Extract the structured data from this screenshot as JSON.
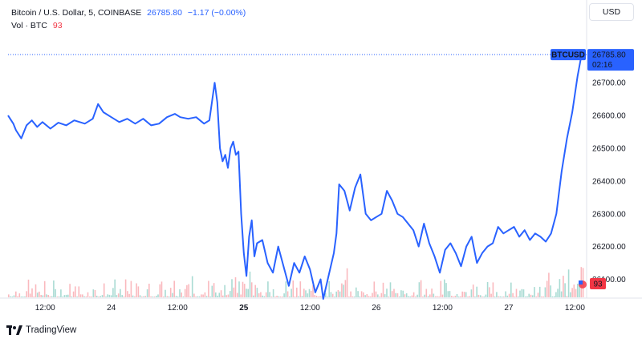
{
  "header": {
    "symbol_desc": "Bitcoin / U.S. Dollar, 5, COINBASE",
    "last_price": "26785.80",
    "change": "−1.17 (−0.00%)",
    "volume_label": "Vol · BTC",
    "volume_value": "93"
  },
  "currency_button": "USD",
  "price_badge": {
    "ticker": "BTCUSD",
    "price": "26785.80",
    "countdown": "02:16"
  },
  "volume_badge": "93",
  "brand": "TradingView",
  "colors": {
    "line": "#2962ff",
    "up_volume": "#089981",
    "down_volume": "#f23645",
    "badge_bg": "#2962ff",
    "volume_badge_bg": "#f23645"
  },
  "chart_data": {
    "type": "line",
    "title": "Bitcoin / U.S. Dollar, 5, COINBASE",
    "xlabel": "",
    "ylabel": "",
    "x_ticks": [
      {
        "label": "12:00",
        "pos": 0.0
      },
      {
        "label": "24",
        "pos": 0.5
      },
      {
        "label": "12:00",
        "pos": 1.0
      },
      {
        "label": "25",
        "pos": 1.5,
        "bold": true
      },
      {
        "label": "12:00",
        "pos": 2.0
      },
      {
        "label": "26",
        "pos": 2.5
      },
      {
        "label": "12:00",
        "pos": 3.0
      },
      {
        "label": "27",
        "pos": 3.5
      },
      {
        "label": "12:00",
        "pos": 4.0
      }
    ],
    "x_range": [
      -0.28,
      4.07
    ],
    "y_ticks": [
      26100,
      26200,
      26300,
      26400,
      26500,
      26600,
      26700
    ],
    "y_tick_labels": [
      "26100.00",
      "26200.00",
      "26300.00",
      "26400.00",
      "26500.00",
      "26600.00",
      "26700.00"
    ],
    "ylim": [
      26045,
      26840
    ],
    "series": [
      {
        "values": [
          [
            -0.28,
            26600
          ],
          [
            -0.24,
            26575
          ],
          [
            -0.22,
            26555
          ],
          [
            -0.18,
            26530
          ],
          [
            -0.14,
            26570
          ],
          [
            -0.1,
            26585
          ],
          [
            -0.06,
            26565
          ],
          [
            -0.02,
            26580
          ],
          [
            0.04,
            26560
          ],
          [
            0.1,
            26578
          ],
          [
            0.16,
            26570
          ],
          [
            0.22,
            26585
          ],
          [
            0.3,
            26575
          ],
          [
            0.36,
            26590
          ],
          [
            0.4,
            26635
          ],
          [
            0.44,
            26610
          ],
          [
            0.5,
            26595
          ],
          [
            0.56,
            26580
          ],
          [
            0.62,
            26590
          ],
          [
            0.68,
            26575
          ],
          [
            0.74,
            26590
          ],
          [
            0.8,
            26570
          ],
          [
            0.86,
            26575
          ],
          [
            0.92,
            26595
          ],
          [
            0.98,
            26605
          ],
          [
            1.02,
            26595
          ],
          [
            1.08,
            26590
          ],
          [
            1.14,
            26595
          ],
          [
            1.2,
            26575
          ],
          [
            1.24,
            26585
          ],
          [
            1.28,
            26700
          ],
          [
            1.3,
            26640
          ],
          [
            1.32,
            26500
          ],
          [
            1.34,
            26460
          ],
          [
            1.36,
            26480
          ],
          [
            1.38,
            26440
          ],
          [
            1.4,
            26500
          ],
          [
            1.42,
            26520
          ],
          [
            1.44,
            26480
          ],
          [
            1.46,
            26490
          ],
          [
            1.48,
            26300
          ],
          [
            1.5,
            26180
          ],
          [
            1.52,
            26110
          ],
          [
            1.54,
            26230
          ],
          [
            1.56,
            26280
          ],
          [
            1.58,
            26170
          ],
          [
            1.6,
            26210
          ],
          [
            1.64,
            26220
          ],
          [
            1.68,
            26150
          ],
          [
            1.72,
            26120
          ],
          [
            1.76,
            26200
          ],
          [
            1.8,
            26140
          ],
          [
            1.84,
            26080
          ],
          [
            1.88,
            26150
          ],
          [
            1.92,
            26120
          ],
          [
            1.96,
            26170
          ],
          [
            2.0,
            26130
          ],
          [
            2.04,
            26060
          ],
          [
            2.08,
            26100
          ],
          [
            2.1,
            26040
          ],
          [
            2.14,
            26110
          ],
          [
            2.18,
            26180
          ],
          [
            2.2,
            26240
          ],
          [
            2.22,
            26390
          ],
          [
            2.26,
            26370
          ],
          [
            2.3,
            26310
          ],
          [
            2.34,
            26380
          ],
          [
            2.38,
            26420
          ],
          [
            2.42,
            26300
          ],
          [
            2.46,
            26280
          ],
          [
            2.5,
            26290
          ],
          [
            2.54,
            26300
          ],
          [
            2.58,
            26370
          ],
          [
            2.62,
            26340
          ],
          [
            2.66,
            26300
          ],
          [
            2.7,
            26290
          ],
          [
            2.74,
            26270
          ],
          [
            2.78,
            26250
          ],
          [
            2.82,
            26200
          ],
          [
            2.86,
            26270
          ],
          [
            2.9,
            26210
          ],
          [
            2.94,
            26170
          ],
          [
            2.98,
            26120
          ],
          [
            3.02,
            26190
          ],
          [
            3.06,
            26210
          ],
          [
            3.1,
            26180
          ],
          [
            3.14,
            26140
          ],
          [
            3.18,
            26200
          ],
          [
            3.22,
            26230
          ],
          [
            3.26,
            26150
          ],
          [
            3.3,
            26180
          ],
          [
            3.34,
            26200
          ],
          [
            3.38,
            26210
          ],
          [
            3.42,
            26260
          ],
          [
            3.46,
            26240
          ],
          [
            3.5,
            26250
          ],
          [
            3.54,
            26260
          ],
          [
            3.58,
            26230
          ],
          [
            3.62,
            26250
          ],
          [
            3.66,
            26220
          ],
          [
            3.7,
            26240
          ],
          [
            3.74,
            26230
          ],
          [
            3.78,
            26215
          ],
          [
            3.82,
            26240
          ],
          [
            3.86,
            26300
          ],
          [
            3.9,
            26430
          ],
          [
            3.94,
            26530
          ],
          [
            3.98,
            26610
          ],
          [
            4.02,
            26720
          ],
          [
            4.05,
            26785.8
          ]
        ]
      }
    ],
    "last_value": 26785.8,
    "grid": false,
    "volume": {
      "bars": 320,
      "last_value": 93
    }
  }
}
